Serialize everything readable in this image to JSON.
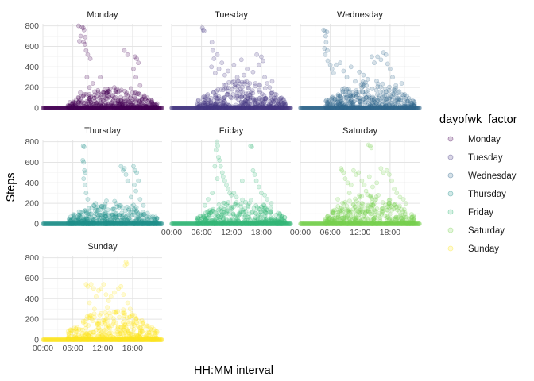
{
  "chart_data": {
    "type": "scatter",
    "layout": "facet_wrap",
    "xlabel": "HH:MM interval",
    "ylabel": "Steps",
    "x_ticks": [
      "00:00",
      "06:00",
      "12:00",
      "18:00"
    ],
    "y_ticks": [
      0,
      200,
      400,
      600,
      800
    ],
    "xlim": [
      "00:00",
      "23:55"
    ],
    "ylim": [
      0,
      820
    ],
    "grid": true,
    "point_alpha": 0.2,
    "legend": {
      "title": "dayofwk_factor",
      "position": "right",
      "entries": [
        "Monday",
        "Tuesday",
        "Wednesday",
        "Thursday",
        "Friday",
        "Saturday",
        "Sunday"
      ]
    },
    "facets": [
      {
        "name": "Monday",
        "color": "#440154",
        "baseline_max": 150,
        "highlights": [
          [
            "07:10",
            800
          ],
          [
            "07:50",
            790
          ],
          [
            "08:05",
            780
          ],
          [
            "08:15",
            760
          ],
          [
            "07:35",
            700
          ],
          [
            "08:30",
            690
          ],
          [
            "07:20",
            650
          ],
          [
            "08:10",
            640
          ],
          [
            "08:25",
            620
          ],
          [
            "08:40",
            560
          ],
          [
            "09:00",
            520
          ],
          [
            "09:30",
            480
          ],
          [
            "10:00",
            240
          ],
          [
            "11:30",
            300
          ],
          [
            "13:00",
            180
          ],
          [
            "14:20",
            200
          ],
          [
            "16:20",
            560
          ],
          [
            "17:00",
            520
          ],
          [
            "18:30",
            500
          ],
          [
            "18:50",
            480
          ],
          [
            "19:10",
            440
          ],
          [
            "18:10",
            380
          ],
          [
            "18:40",
            300
          ],
          [
            "19:30",
            220
          ],
          [
            "17:40",
            190
          ],
          [
            "20:20",
            120
          ],
          [
            "08:50",
            300
          ],
          [
            "09:20",
            200
          ],
          [
            "07:30",
            150
          ],
          [
            "18:00",
            150
          ],
          [
            "18:20",
            110
          ],
          [
            "12:10",
            150
          ]
        ]
      },
      {
        "name": "Tuesday",
        "color": "#443983",
        "baseline_max": 200,
        "highlights": [
          [
            "06:10",
            780
          ],
          [
            "06:20",
            760
          ],
          [
            "06:30",
            750
          ],
          [
            "08:05",
            640
          ],
          [
            "08:15",
            560
          ],
          [
            "08:30",
            480
          ],
          [
            "08:00",
            400
          ],
          [
            "08:45",
            340
          ],
          [
            "09:10",
            520
          ],
          [
            "09:30",
            380
          ],
          [
            "10:05",
            440
          ],
          [
            "10:40",
            320
          ],
          [
            "11:20",
            360
          ],
          [
            "12:30",
            420
          ],
          [
            "13:10",
            300
          ],
          [
            "14:00",
            470
          ],
          [
            "14:30",
            320
          ],
          [
            "15:10",
            380
          ],
          [
            "16:20",
            350
          ],
          [
            "17:05",
            520
          ],
          [
            "17:30",
            420
          ],
          [
            "18:00",
            500
          ],
          [
            "18:20",
            460
          ],
          [
            "18:40",
            300
          ],
          [
            "19:10",
            240
          ],
          [
            "19:40",
            200
          ],
          [
            "20:10",
            260
          ],
          [
            "12:10",
            250
          ],
          [
            "15:40",
            240
          ]
        ]
      },
      {
        "name": "Wednesday",
        "color": "#31688e",
        "baseline_max": 200,
        "highlights": [
          [
            "04:40",
            760
          ],
          [
            "04:55",
            750
          ],
          [
            "05:05",
            700
          ],
          [
            "05:20",
            740
          ],
          [
            "05:10",
            640
          ],
          [
            "04:50",
            580
          ],
          [
            "05:25",
            560
          ],
          [
            "05:00",
            520
          ],
          [
            "05:30",
            460
          ],
          [
            "06:00",
            420
          ],
          [
            "06:20",
            380
          ],
          [
            "06:40",
            340
          ],
          [
            "07:10",
            420
          ],
          [
            "08:00",
            440
          ],
          [
            "08:40",
            360
          ],
          [
            "09:20",
            300
          ],
          [
            "10:10",
            400
          ],
          [
            "11:00",
            260
          ],
          [
            "11:50",
            350
          ],
          [
            "12:40",
            320
          ],
          [
            "13:30",
            280
          ],
          [
            "14:20",
            500
          ],
          [
            "14:50",
            440
          ],
          [
            "15:30",
            500
          ],
          [
            "16:10",
            470
          ],
          [
            "16:40",
            540
          ],
          [
            "17:10",
            520
          ],
          [
            "17:30",
            430
          ],
          [
            "18:00",
            380
          ],
          [
            "18:30",
            300
          ],
          [
            "19:10",
            220
          ],
          [
            "19:50",
            160
          ],
          [
            "20:20",
            240
          ]
        ]
      },
      {
        "name": "Thursday",
        "color": "#21918c",
        "baseline_max": 170,
        "highlights": [
          [
            "08:05",
            760
          ],
          [
            "08:15",
            750
          ],
          [
            "08:00",
            620
          ],
          [
            "08:10",
            600
          ],
          [
            "08:20",
            520
          ],
          [
            "08:30",
            500
          ],
          [
            "08:10",
            440
          ],
          [
            "08:25",
            380
          ],
          [
            "08:40",
            300
          ],
          [
            "09:00",
            240
          ],
          [
            "15:40",
            560
          ],
          [
            "16:05",
            520
          ],
          [
            "16:20",
            540
          ],
          [
            "16:40",
            480
          ],
          [
            "17:00",
            420
          ],
          [
            "18:10",
            560
          ],
          [
            "18:30",
            520
          ],
          [
            "18:50",
            500
          ],
          [
            "19:10",
            420
          ],
          [
            "18:20",
            380
          ],
          [
            "18:40",
            320
          ],
          [
            "17:40",
            260
          ],
          [
            "19:30",
            240
          ],
          [
            "20:10",
            180
          ],
          [
            "12:10",
            160
          ],
          [
            "14:00",
            140
          ],
          [
            "10:30",
            130
          ]
        ]
      },
      {
        "name": "Friday",
        "color": "#35b779",
        "baseline_max": 180,
        "highlights": [
          [
            "09:05",
            800
          ],
          [
            "09:15",
            760
          ],
          [
            "08:55",
            720
          ],
          [
            "09:25",
            650
          ],
          [
            "09:35",
            620
          ],
          [
            "08:40",
            560
          ],
          [
            "09:50",
            560
          ],
          [
            "10:10",
            500
          ],
          [
            "10:20",
            460
          ],
          [
            "09:10",
            440
          ],
          [
            "10:40",
            420
          ],
          [
            "11:00",
            380
          ],
          [
            "11:20",
            340
          ],
          [
            "11:40",
            300
          ],
          [
            "12:00",
            280
          ],
          [
            "12:30",
            300
          ],
          [
            "13:00",
            260
          ],
          [
            "14:10",
            420
          ],
          [
            "15:50",
            760
          ],
          [
            "16:05",
            750
          ],
          [
            "16:20",
            520
          ],
          [
            "16:40",
            480
          ],
          [
            "17:00",
            420
          ],
          [
            "17:30",
            360
          ],
          [
            "18:00",
            300
          ],
          [
            "18:40",
            280
          ],
          [
            "19:10",
            240
          ],
          [
            "20:00",
            200
          ],
          [
            "06:40",
            180
          ],
          [
            "07:20",
            240
          ],
          [
            "08:10",
            300
          ]
        ]
      },
      {
        "name": "Saturday",
        "color": "#7ad151",
        "baseline_max": 220,
        "highlights": [
          [
            "13:40",
            770
          ],
          [
            "14:00",
            760
          ],
          [
            "14:15",
            740
          ],
          [
            "08:10",
            540
          ],
          [
            "08:20",
            520
          ],
          [
            "08:40",
            500
          ],
          [
            "09:00",
            440
          ],
          [
            "09:30",
            400
          ],
          [
            "10:10",
            380
          ],
          [
            "10:40",
            520
          ],
          [
            "11:10",
            480
          ],
          [
            "11:40",
            500
          ],
          [
            "12:20",
            420
          ],
          [
            "12:50",
            380
          ],
          [
            "13:10",
            320
          ],
          [
            "13:50",
            460
          ],
          [
            "14:30",
            360
          ],
          [
            "15:20",
            400
          ],
          [
            "16:10",
            540
          ],
          [
            "16:40",
            500
          ],
          [
            "17:20",
            520
          ],
          [
            "17:50",
            480
          ],
          [
            "18:20",
            420
          ],
          [
            "18:50",
            340
          ],
          [
            "19:20",
            300
          ],
          [
            "20:00",
            260
          ],
          [
            "20:40",
            240
          ],
          [
            "21:10",
            200
          ],
          [
            "07:30",
            240
          ],
          [
            "09:50",
            300
          ]
        ]
      },
      {
        "name": "Sunday",
        "color": "#fde725",
        "baseline_max": 240,
        "highlights": [
          [
            "16:40",
            760
          ],
          [
            "16:50",
            740
          ],
          [
            "16:30",
            720
          ],
          [
            "08:40",
            540
          ],
          [
            "09:00",
            520
          ],
          [
            "09:40",
            540
          ],
          [
            "10:10",
            500
          ],
          [
            "10:40",
            420
          ],
          [
            "11:10",
            480
          ],
          [
            "11:40",
            500
          ],
          [
            "12:10",
            540
          ],
          [
            "12:40",
            440
          ],
          [
            "13:10",
            380
          ],
          [
            "13:40",
            420
          ],
          [
            "14:20",
            460
          ],
          [
            "15:10",
            500
          ],
          [
            "15:40",
            520
          ],
          [
            "16:10",
            440
          ],
          [
            "17:00",
            360
          ],
          [
            "17:30",
            300
          ],
          [
            "18:00",
            240
          ],
          [
            "18:40",
            200
          ],
          [
            "19:20",
            180
          ],
          [
            "20:00",
            160
          ],
          [
            "09:20",
            360
          ],
          [
            "10:20",
            300
          ],
          [
            "13:20",
            260
          ],
          [
            "15:20",
            220
          ],
          [
            "16:20",
            240
          ],
          [
            "17:20",
            220
          ]
        ]
      }
    ]
  }
}
